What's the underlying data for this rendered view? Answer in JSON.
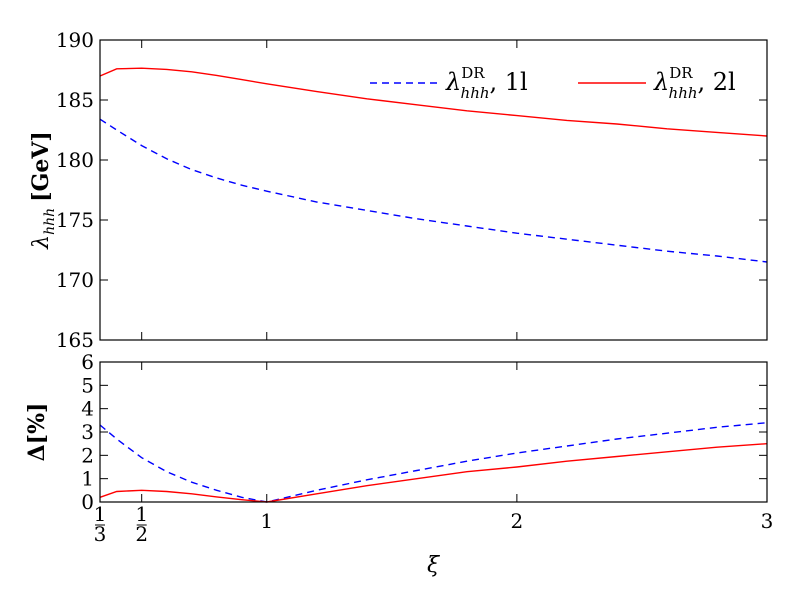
{
  "chart_data": [
    {
      "type": "line",
      "ylabel_prefix": "λ",
      "ylabel_sub": "hhh",
      "ylabel_unit": "[GeV]",
      "xlim": [
        0.3333,
        3
      ],
      "ylim": [
        165,
        190
      ],
      "yticks": [
        "165",
        "170",
        "175",
        "180",
        "185",
        "190"
      ],
      "grid": false,
      "legend_position": "top-right",
      "series": [
        {
          "name_base": "λ",
          "name_sup": "DR",
          "name_sub": "hhh",
          "name_suffix": ", 1l",
          "color": "#0000ff",
          "style": "dashed",
          "x": [
            0.3333,
            0.4,
            0.5,
            0.6,
            0.7,
            0.8,
            0.9,
            1.0,
            1.2,
            1.4,
            1.6,
            1.8,
            2.0,
            2.2,
            2.4,
            2.6,
            2.8,
            3.0
          ],
          "y": [
            183.4,
            182.5,
            181.2,
            180.1,
            179.2,
            178.5,
            177.9,
            177.4,
            176.5,
            175.8,
            175.1,
            174.5,
            173.9,
            173.4,
            172.9,
            172.4,
            172.0,
            171.5
          ]
        },
        {
          "name_base": "λ",
          "name_sup": "DR",
          "name_sub": "hhh",
          "name_suffix": ", 2l",
          "color": "#ff0000",
          "style": "solid",
          "x": [
            0.3333,
            0.4,
            0.5,
            0.6,
            0.7,
            0.8,
            0.9,
            1.0,
            1.2,
            1.4,
            1.6,
            1.8,
            2.0,
            2.2,
            2.4,
            2.6,
            2.8,
            3.0
          ],
          "y": [
            187.0,
            187.6,
            187.65,
            187.55,
            187.35,
            187.05,
            186.7,
            186.35,
            185.7,
            185.1,
            184.6,
            184.1,
            183.7,
            183.3,
            183.0,
            182.6,
            182.3,
            182.0
          ]
        }
      ]
    },
    {
      "type": "line",
      "ylabel": "Δ[%]",
      "xlabel": "ξ",
      "xlim": [
        0.3333,
        3
      ],
      "ylim": [
        0,
        6
      ],
      "yticks": [
        "0",
        "1",
        "2",
        "3",
        "4",
        "5",
        "6"
      ],
      "xticks": [
        {
          "value": 0.3333,
          "num": "1",
          "den": "3"
        },
        {
          "value": 0.5,
          "num": "1",
          "den": "2"
        },
        {
          "value": 1,
          "label": "1"
        },
        {
          "value": 2,
          "label": "2"
        },
        {
          "value": 3,
          "label": "3"
        }
      ],
      "grid": false,
      "series": [
        {
          "color": "#0000ff",
          "style": "dashed",
          "x": [
            0.3333,
            0.4,
            0.5,
            0.6,
            0.7,
            0.8,
            0.9,
            1.0,
            1.2,
            1.4,
            1.6,
            1.8,
            2.0,
            2.2,
            2.4,
            2.6,
            2.8,
            3.0
          ],
          "y": [
            3.3,
            2.7,
            1.9,
            1.3,
            0.85,
            0.5,
            0.2,
            0.0,
            0.5,
            0.95,
            1.35,
            1.75,
            2.1,
            2.4,
            2.7,
            2.95,
            3.2,
            3.4
          ]
        },
        {
          "color": "#ff0000",
          "style": "solid",
          "x": [
            0.3333,
            0.4,
            0.5,
            0.6,
            0.7,
            0.8,
            0.9,
            1.0,
            1.2,
            1.4,
            1.6,
            1.8,
            2.0,
            2.2,
            2.4,
            2.6,
            2.8,
            3.0
          ],
          "y": [
            0.2,
            0.45,
            0.5,
            0.45,
            0.35,
            0.22,
            0.1,
            0.0,
            0.35,
            0.7,
            1.0,
            1.3,
            1.5,
            1.75,
            1.95,
            2.15,
            2.35,
            2.5
          ]
        }
      ]
    }
  ]
}
